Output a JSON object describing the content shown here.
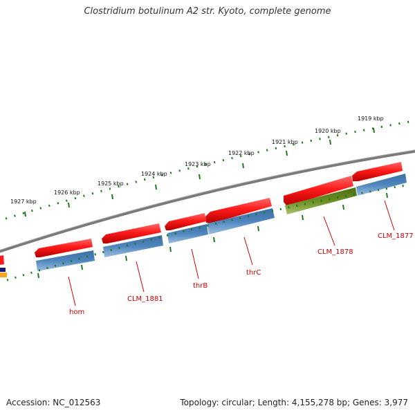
{
  "title": "Clostridium botulinum A2 str. Kyoto, complete genome",
  "footer": {
    "accession": "Accession: NC_012563",
    "summary": "Topology: circular; Length: 4,155,278 bp; Genes: 3,977"
  },
  "ruler_labels": [
    "1919 kbp",
    "1920 kbp",
    "1921 kbp",
    "1922 kbp",
    "1923 kbp",
    "1924 kbp",
    "1925 kbp",
    "1926 kbp",
    "1927 kbp"
  ],
  "gene_labels": [
    "CLM_1877",
    "CLM_1878",
    "thrC",
    "thrB",
    "CLM_1881",
    "hom"
  ],
  "colors": {
    "forward_gene": "#ff1a1a",
    "cds": "#4a7fb5",
    "cds_other": "#6b8e23",
    "backbone": "#808080",
    "ticks": "#1e7a1e",
    "label": "#cc0000"
  }
}
